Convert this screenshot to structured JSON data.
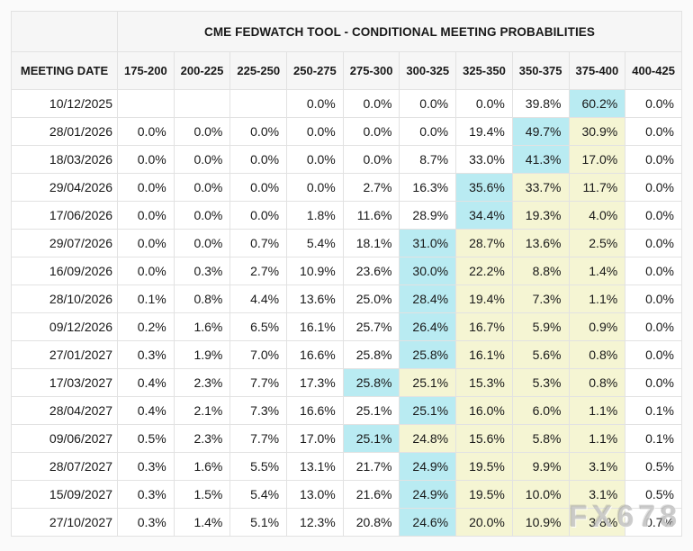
{
  "header": {
    "title": "CME FEDWATCH TOOL - CONDITIONAL MEETING PROBABILITIES",
    "meeting_date_label": "MEETING DATE"
  },
  "watermark": {
    "text": "FX678"
  },
  "colors": {
    "max_highlight": "#b9ebf2",
    "band_highlight": "#f5f5d3",
    "header_bg": "#f6f6f6",
    "border": "#e2e2e2"
  },
  "chart_data": {
    "type": "table",
    "title": "CME FEDWATCH TOOL - CONDITIONAL MEETING PROBABILITIES",
    "date_column_header": "MEETING DATE",
    "rate_columns": [
      "175-200",
      "200-225",
      "225-250",
      "250-275",
      "275-300",
      "300-325",
      "325-350",
      "350-375",
      "375-400",
      "400-425"
    ],
    "highlight_legend": {
      "max_index": "cell shaded cyan (highest probability in row)",
      "band_indices": "cells shaded pale yellow"
    },
    "rows": [
      {
        "date": "10/12/2025",
        "values": [
          "",
          "",
          "",
          "0.0%",
          "0.0%",
          "0.0%",
          "0.0%",
          "39.8%",
          "60.2%",
          "0.0%"
        ],
        "max_index": 8,
        "band_indices": []
      },
      {
        "date": "28/01/2026",
        "values": [
          "0.0%",
          "0.0%",
          "0.0%",
          "0.0%",
          "0.0%",
          "0.0%",
          "19.4%",
          "49.7%",
          "30.9%",
          "0.0%"
        ],
        "max_index": 7,
        "band_indices": [
          8
        ]
      },
      {
        "date": "18/03/2026",
        "values": [
          "0.0%",
          "0.0%",
          "0.0%",
          "0.0%",
          "0.0%",
          "8.7%",
          "33.0%",
          "41.3%",
          "17.0%",
          "0.0%"
        ],
        "max_index": 7,
        "band_indices": [
          8
        ]
      },
      {
        "date": "29/04/2026",
        "values": [
          "0.0%",
          "0.0%",
          "0.0%",
          "0.0%",
          "2.7%",
          "16.3%",
          "35.6%",
          "33.7%",
          "11.7%",
          "0.0%"
        ],
        "max_index": 6,
        "band_indices": [
          7,
          8
        ]
      },
      {
        "date": "17/06/2026",
        "values": [
          "0.0%",
          "0.0%",
          "0.0%",
          "1.8%",
          "11.6%",
          "28.9%",
          "34.4%",
          "19.3%",
          "4.0%",
          "0.0%"
        ],
        "max_index": 6,
        "band_indices": [
          7,
          8
        ]
      },
      {
        "date": "29/07/2026",
        "values": [
          "0.0%",
          "0.0%",
          "0.7%",
          "5.4%",
          "18.1%",
          "31.0%",
          "28.7%",
          "13.6%",
          "2.5%",
          "0.0%"
        ],
        "max_index": 5,
        "band_indices": [
          6,
          7,
          8
        ]
      },
      {
        "date": "16/09/2026",
        "values": [
          "0.0%",
          "0.3%",
          "2.7%",
          "10.9%",
          "23.6%",
          "30.0%",
          "22.2%",
          "8.8%",
          "1.4%",
          "0.0%"
        ],
        "max_index": 5,
        "band_indices": [
          6,
          7,
          8
        ]
      },
      {
        "date": "28/10/2026",
        "values": [
          "0.1%",
          "0.8%",
          "4.4%",
          "13.6%",
          "25.0%",
          "28.4%",
          "19.4%",
          "7.3%",
          "1.1%",
          "0.0%"
        ],
        "max_index": 5,
        "band_indices": [
          6,
          7,
          8
        ]
      },
      {
        "date": "09/12/2026",
        "values": [
          "0.2%",
          "1.6%",
          "6.5%",
          "16.1%",
          "25.7%",
          "26.4%",
          "16.7%",
          "5.9%",
          "0.9%",
          "0.0%"
        ],
        "max_index": 5,
        "band_indices": [
          6,
          7,
          8
        ]
      },
      {
        "date": "27/01/2027",
        "values": [
          "0.3%",
          "1.9%",
          "7.0%",
          "16.6%",
          "25.8%",
          "25.8%",
          "16.1%",
          "5.6%",
          "0.8%",
          "0.0%"
        ],
        "max_index": 5,
        "band_indices": [
          6,
          7,
          8
        ]
      },
      {
        "date": "17/03/2027",
        "values": [
          "0.4%",
          "2.3%",
          "7.7%",
          "17.3%",
          "25.8%",
          "25.1%",
          "15.3%",
          "5.3%",
          "0.8%",
          "0.0%"
        ],
        "max_index": 4,
        "band_indices": [
          5,
          6,
          7,
          8
        ]
      },
      {
        "date": "28/04/2027",
        "values": [
          "0.4%",
          "2.1%",
          "7.3%",
          "16.6%",
          "25.1%",
          "25.1%",
          "16.0%",
          "6.0%",
          "1.1%",
          "0.1%"
        ],
        "max_index": 5,
        "band_indices": [
          6,
          7,
          8
        ]
      },
      {
        "date": "09/06/2027",
        "values": [
          "0.5%",
          "2.3%",
          "7.7%",
          "17.0%",
          "25.1%",
          "24.8%",
          "15.6%",
          "5.8%",
          "1.1%",
          "0.1%"
        ],
        "max_index": 4,
        "band_indices": [
          5,
          6,
          7,
          8
        ]
      },
      {
        "date": "28/07/2027",
        "values": [
          "0.3%",
          "1.6%",
          "5.5%",
          "13.1%",
          "21.7%",
          "24.9%",
          "19.5%",
          "9.9%",
          "3.1%",
          "0.5%"
        ],
        "max_index": 5,
        "band_indices": [
          6,
          7,
          8
        ]
      },
      {
        "date": "15/09/2027",
        "values": [
          "0.3%",
          "1.5%",
          "5.4%",
          "13.0%",
          "21.6%",
          "24.9%",
          "19.5%",
          "10.0%",
          "3.1%",
          "0.5%"
        ],
        "max_index": 5,
        "band_indices": [
          6,
          7,
          8
        ]
      },
      {
        "date": "27/10/2027",
        "values": [
          "0.3%",
          "1.4%",
          "5.1%",
          "12.3%",
          "20.8%",
          "24.6%",
          "20.0%",
          "10.9%",
          "3.8%",
          "0.7%"
        ],
        "max_index": 5,
        "band_indices": [
          6,
          7,
          8
        ]
      }
    ]
  }
}
